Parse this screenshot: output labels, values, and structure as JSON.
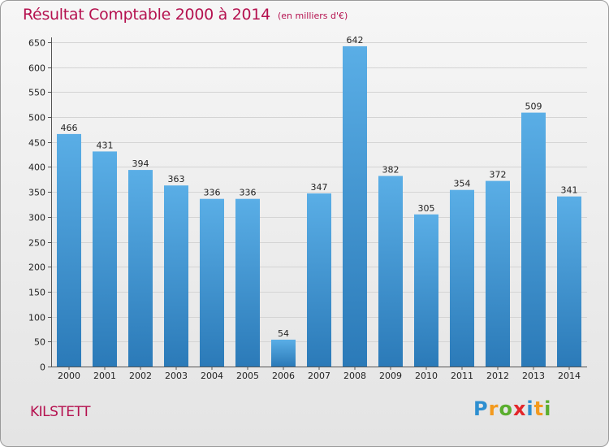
{
  "header": {
    "title": "Résultat Comptable 2000 à 2014",
    "subtitle": "(en milliers d'€)"
  },
  "footer": {
    "commune": "KILSTETT",
    "brand_letters": [
      {
        "ch": "P",
        "color": "#2e8fd0"
      },
      {
        "ch": "r",
        "color": "#f39a1e"
      },
      {
        "ch": "o",
        "color": "#5aae2e"
      },
      {
        "ch": "x",
        "color": "#e3262a"
      },
      {
        "ch": "i",
        "color": "#2e8fd0"
      },
      {
        "ch": "t",
        "color": "#f39a1e"
      },
      {
        "ch": "i",
        "color": "#5aae2e"
      }
    ]
  },
  "chart_data": {
    "type": "bar",
    "categories": [
      "2000",
      "2001",
      "2002",
      "2003",
      "2004",
      "2005",
      "2006",
      "2007",
      "2008",
      "2009",
      "2010",
      "2011",
      "2012",
      "2013",
      "2014"
    ],
    "values": [
      466,
      431,
      394,
      363,
      336,
      336,
      54,
      347,
      642,
      382,
      305,
      354,
      372,
      509,
      341
    ],
    "title": "Résultat Comptable 2000 à 2014",
    "subtitle": "(en milliers d'€)",
    "xlabel": "",
    "ylabel": "",
    "ylim": [
      0,
      650
    ],
    "yticks": [
      0,
      50,
      100,
      150,
      200,
      250,
      300,
      350,
      400,
      450,
      500,
      550,
      600,
      650
    ],
    "grid": true,
    "bar_color_top": "#5aaee6",
    "bar_color_bottom": "#2b7ab8"
  }
}
